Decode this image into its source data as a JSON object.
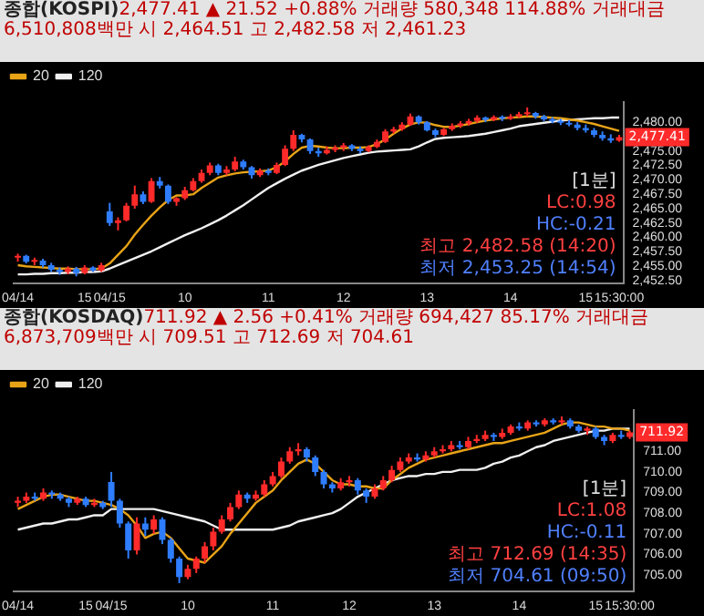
{
  "chart_data": [
    {
      "type": "candlestick",
      "title": "종합(KOSPI)",
      "subtitle": "2,477.41 ▲ 21.52 +0.88% 거래량 580,348 114.88% 거래대금 6,510,808백만 시 2,464.51 고 2,482.58 저 2,461.23",
      "categories": [
        "04/14",
        null,
        null,
        null,
        null,
        null,
        null,
        null,
        "15",
        null,
        null,
        "04/15",
        null,
        null,
        null,
        null,
        null,
        null,
        null,
        null,
        "10",
        null,
        null,
        null,
        null,
        null,
        null,
        null,
        null,
        null,
        "11",
        null,
        null,
        null,
        null,
        null,
        null,
        null,
        null,
        "12",
        null,
        null,
        null,
        null,
        null,
        null,
        null,
        null,
        null,
        "13",
        null,
        null,
        null,
        null,
        null,
        null,
        null,
        null,
        null,
        "14",
        null,
        null,
        null,
        null,
        null,
        null,
        null,
        null,
        "15",
        null,
        null,
        null,
        "15:30:00"
      ],
      "ohlc": [
        [
          2456.5,
          2457.2,
          2455.8,
          2456.8
        ],
        [
          2456.8,
          2457.0,
          2455.5,
          2455.8
        ],
        [
          2455.8,
          2456.5,
          2455.2,
          2456.0
        ],
        [
          2456.0,
          2456.3,
          2454.8,
          2455.2
        ],
        [
          2455.2,
          2455.6,
          2454.0,
          2454.4
        ],
        [
          2454.4,
          2454.8,
          2453.5,
          2454.0
        ],
        [
          2454.0,
          2455.0,
          2453.6,
          2454.6
        ],
        [
          2454.6,
          2454.9,
          2453.25,
          2453.8
        ],
        [
          2453.8,
          2455.2,
          2453.6,
          2454.8
        ],
        [
          2454.8,
          2455.0,
          2454.0,
          2454.3
        ],
        [
          2454.3,
          2455.6,
          2454.0,
          2455.2
        ],
        [
          2464.51,
          2466.0,
          2462.0,
          2462.5
        ],
        [
          2462.5,
          2463.5,
          2461.23,
          2463.0
        ],
        [
          2463.0,
          2466.0,
          2462.8,
          2465.5
        ],
        [
          2465.5,
          2469.0,
          2465.0,
          2467.5
        ],
        [
          2467.5,
          2468.0,
          2465.8,
          2466.2
        ],
        [
          2466.2,
          2470.3,
          2466.0,
          2469.8
        ],
        [
          2469.8,
          2470.5,
          2468.5,
          2469.0
        ],
        [
          2469.0,
          2469.2,
          2465.8,
          2466.2
        ],
        [
          2466.2,
          2467.0,
          2465.5,
          2466.8
        ],
        [
          2466.8,
          2468.8,
          2466.5,
          2468.2
        ],
        [
          2468.2,
          2470.3,
          2468.0,
          2469.8
        ],
        [
          2469.8,
          2471.8,
          2469.5,
          2471.2
        ],
        [
          2471.2,
          2473.0,
          2470.8,
          2472.5
        ],
        [
          2472.5,
          2472.8,
          2470.8,
          2471.2
        ],
        [
          2471.2,
          2472.4,
          2470.8,
          2471.8
        ],
        [
          2471.8,
          2474.0,
          2471.5,
          2473.2
        ],
        [
          2473.2,
          2473.5,
          2471.8,
          2472.2
        ],
        [
          2472.2,
          2472.4,
          2470.2,
          2470.8
        ],
        [
          2470.8,
          2472.0,
          2470.5,
          2471.6
        ],
        [
          2471.6,
          2472.0,
          2470.8,
          2471.2
        ],
        [
          2471.2,
          2473.0,
          2471.0,
          2472.6
        ],
        [
          2472.6,
          2476.0,
          2472.4,
          2475.4
        ],
        [
          2475.4,
          2478.6,
          2475.0,
          2477.8
        ],
        [
          2477.8,
          2478.0,
          2476.5,
          2477.0
        ],
        [
          2477.0,
          2477.2,
          2474.5,
          2475.0
        ],
        [
          2475.0,
          2475.6,
          2474.0,
          2474.6
        ],
        [
          2474.6,
          2475.8,
          2474.4,
          2475.2
        ],
        [
          2475.2,
          2476.0,
          2474.8,
          2475.6
        ],
        [
          2475.6,
          2476.4,
          2475.0,
          2476.0
        ],
        [
          2476.0,
          2476.2,
          2475.0,
          2475.4
        ],
        [
          2475.4,
          2475.8,
          2474.6,
          2475.0
        ],
        [
          2475.0,
          2476.0,
          2474.8,
          2475.7
        ],
        [
          2475.7,
          2477.0,
          2475.5,
          2476.6
        ],
        [
          2476.6,
          2478.8,
          2476.4,
          2478.4
        ],
        [
          2478.4,
          2479.2,
          2478.0,
          2478.8
        ],
        [
          2478.8,
          2480.0,
          2478.5,
          2479.6
        ],
        [
          2479.6,
          2481.5,
          2479.4,
          2481.0
        ],
        [
          2481.0,
          2481.2,
          2479.6,
          2480.0
        ],
        [
          2480.0,
          2480.2,
          2478.4,
          2478.6
        ],
        [
          2478.6,
          2478.9,
          2477.4,
          2477.8
        ],
        [
          2477.8,
          2479.0,
          2477.6,
          2478.8
        ],
        [
          2478.8,
          2479.8,
          2478.5,
          2479.4
        ],
        [
          2479.4,
          2480.2,
          2479.0,
          2479.8
        ],
        [
          2479.8,
          2480.6,
          2479.4,
          2480.2
        ],
        [
          2480.2,
          2481.2,
          2479.9,
          2480.8
        ],
        [
          2480.8,
          2481.0,
          2480.0,
          2480.4
        ],
        [
          2480.4,
          2481.2,
          2480.2,
          2480.9
        ],
        [
          2480.9,
          2481.2,
          2480.2,
          2480.6
        ],
        [
          2480.6,
          2481.4,
          2480.4,
          2481.0
        ],
        [
          2481.0,
          2481.8,
          2480.8,
          2481.4
        ],
        [
          2481.4,
          2482.58,
          2481.0,
          2481.6
        ],
        [
          2481.6,
          2481.8,
          2480.6,
          2481.0
        ],
        [
          2481.0,
          2481.3,
          2480.2,
          2480.5
        ],
        [
          2480.5,
          2480.9,
          2479.8,
          2480.2
        ],
        [
          2480.2,
          2480.6,
          2479.5,
          2479.9
        ],
        [
          2479.9,
          2480.4,
          2479.3,
          2479.6
        ],
        [
          2479.6,
          2480.0,
          2478.6,
          2479.0
        ],
        [
          2479.0,
          2479.6,
          2478.2,
          2478.6
        ],
        [
          2478.6,
          2479.0,
          2477.4,
          2477.8
        ],
        [
          2477.8,
          2478.4,
          2476.8,
          2477.2
        ],
        [
          2477.2,
          2477.9,
          2476.4,
          2476.8
        ],
        [
          2476.8,
          2477.8,
          2476.6,
          2477.41
        ]
      ],
      "series": [
        {
          "name": "20",
          "type": "line",
          "color": "#e8a317",
          "values": [
            2455.2,
            2455.0,
            2454.9,
            2454.8,
            2454.7,
            2454.6,
            2454.6,
            2454.5,
            2454.5,
            2454.5,
            2454.6,
            2455.5,
            2457.0,
            2458.5,
            2460.5,
            2462.2,
            2463.8,
            2465.2,
            2466.5,
            2467.3,
            2467.3,
            2467.5,
            2468.6,
            2469.5,
            2470.4,
            2470.8,
            2471.1,
            2471.3,
            2471.4,
            2471.5,
            2471.6,
            2472.2,
            2473.2,
            2474.5,
            2475.6,
            2475.9,
            2475.8,
            2475.6,
            2475.5,
            2475.5,
            2475.6,
            2475.6,
            2475.7,
            2476.2,
            2477.0,
            2478.0,
            2478.9,
            2479.6,
            2480.0,
            2479.9,
            2479.5,
            2479.2,
            2479.2,
            2479.4,
            2479.7,
            2480.0,
            2480.3,
            2480.5,
            2480.7,
            2480.8,
            2480.9,
            2481.0,
            2481.0,
            2480.9,
            2480.8,
            2480.7,
            2480.5,
            2480.3,
            2480.0,
            2479.7,
            2479.3,
            2478.9,
            2478.5
          ]
        },
        {
          "name": "120",
          "type": "line",
          "color": "#f0f0f0",
          "values": [
            2453.6,
            2453.6,
            2453.7,
            2453.7,
            2453.8,
            2453.8,
            2453.9,
            2453.9,
            2454.0,
            2454.0,
            2454.1,
            2454.6,
            2455.2,
            2455.8,
            2456.4,
            2457.0,
            2457.6,
            2458.3,
            2459.0,
            2459.7,
            2460.4,
            2461.0,
            2461.6,
            2462.3,
            2463.0,
            2463.8,
            2464.7,
            2465.6,
            2466.6,
            2467.6,
            2468.6,
            2469.4,
            2470.2,
            2470.9,
            2471.6,
            2472.1,
            2472.6,
            2473.0,
            2473.4,
            2473.8,
            2474.1,
            2474.4,
            2474.7,
            2474.9,
            2475.0,
            2475.1,
            2475.2,
            2475.3,
            2475.8,
            2476.5,
            2477.1,
            2477.3,
            2477.4,
            2477.5,
            2477.6,
            2477.8,
            2478.0,
            2478.3,
            2478.6,
            2478.9,
            2479.3,
            2479.5,
            2479.7,
            2479.9,
            2480.1,
            2480.3,
            2480.4,
            2480.5,
            2480.6,
            2480.7,
            2480.7,
            2480.8,
            2480.8
          ]
        }
      ],
      "ylim": [
        2452,
        2483.5
      ],
      "yticks": [
        {
          "value": 2452.5,
          "label": "2,452.50"
        },
        {
          "value": 2455,
          "label": "2,455.00"
        },
        {
          "value": 2457.5,
          "label": "2,457.50"
        },
        {
          "value": 2460,
          "label": "2,460.00"
        },
        {
          "value": 2462.5,
          "label": "2,462.50"
        },
        {
          "value": 2465,
          "label": "2,465.00"
        },
        {
          "value": 2467.5,
          "label": "2,467.50"
        },
        {
          "value": 2470,
          "label": "2,470.00"
        },
        {
          "value": 2472.5,
          "label": "2,472.50"
        },
        {
          "value": 2475,
          "label": "2,475.00"
        },
        {
          "value": 2480,
          "label": "2,480.00"
        }
      ],
      "annotations": [
        "[1분]",
        "LC:0.98",
        "HC:-0.21",
        "최고 2,482.58 (14:20)",
        "최저 2,453.25 (14:54)",
        {
          "text": "2,477.41",
          "x": "15:30:00",
          "y": 2477.41
        }
      ],
      "legend": "top left"
    },
    {
      "type": "candlestick",
      "title": "종합(KOSDAQ)",
      "subtitle": "711.92 ▲ 2.56 +0.41% 거래량 694,427 85.17% 거래대금 6,873,709백만 시 709.51 고 712.69 저 704.61",
      "categories": [
        "04/14",
        null,
        null,
        null,
        null,
        null,
        null,
        null,
        "15",
        null,
        null,
        "04/15",
        null,
        null,
        null,
        null,
        null,
        null,
        null,
        null,
        "10",
        null,
        null,
        null,
        null,
        null,
        null,
        null,
        null,
        null,
        "11",
        null,
        null,
        null,
        null,
        null,
        null,
        null,
        null,
        "12",
        null,
        null,
        null,
        null,
        null,
        null,
        null,
        null,
        null,
        "13",
        null,
        null,
        null,
        null,
        null,
        null,
        null,
        null,
        null,
        "14",
        null,
        null,
        null,
        null,
        null,
        null,
        null,
        null,
        "15",
        null,
        null,
        null,
        "15:30:00"
      ],
      "ohlc": [
        [
          708.5,
          708.8,
          708.3,
          708.6
        ],
        [
          708.6,
          709.0,
          708.5,
          708.8
        ],
        [
          708.8,
          709.0,
          708.6,
          708.7
        ],
        [
          708.7,
          709.2,
          708.6,
          709.0
        ],
        [
          709.0,
          709.1,
          708.7,
          708.9
        ],
        [
          708.9,
          709.0,
          708.6,
          708.7
        ],
        [
          708.7,
          708.8,
          708.3,
          708.5
        ],
        [
          708.5,
          708.8,
          708.4,
          708.7
        ],
        [
          708.7,
          708.8,
          708.3,
          708.4
        ],
        [
          708.4,
          708.7,
          708.3,
          708.5
        ],
        [
          708.5,
          708.6,
          708.2,
          708.3
        ],
        [
          709.51,
          710.0,
          708.3,
          708.6
        ],
        [
          708.6,
          708.7,
          707.3,
          707.5
        ],
        [
          707.5,
          707.6,
          705.8,
          706.2
        ],
        [
          706.2,
          707.8,
          706.0,
          707.5
        ],
        [
          707.5,
          707.8,
          706.9,
          707.2
        ],
        [
          707.2,
          707.9,
          707.0,
          707.7
        ],
        [
          707.7,
          707.8,
          706.5,
          706.7
        ],
        [
          706.7,
          706.8,
          705.6,
          705.8
        ],
        [
          705.8,
          705.9,
          704.61,
          704.9
        ],
        [
          704.9,
          705.5,
          704.8,
          705.3
        ],
        [
          705.3,
          705.9,
          705.1,
          705.8
        ],
        [
          705.8,
          706.6,
          705.6,
          706.4
        ],
        [
          706.4,
          707.3,
          706.2,
          707.1
        ],
        [
          707.1,
          707.9,
          707.0,
          707.7
        ],
        [
          707.7,
          708.5,
          707.6,
          708.3
        ],
        [
          708.3,
          709.1,
          708.2,
          708.9
        ],
        [
          708.9,
          709.0,
          708.5,
          708.7
        ],
        [
          708.7,
          709.1,
          708.6,
          708.9
        ],
        [
          708.9,
          709.6,
          708.8,
          709.4
        ],
        [
          709.4,
          710.0,
          709.3,
          709.8
        ],
        [
          709.8,
          710.7,
          709.7,
          710.5
        ],
        [
          710.5,
          711.2,
          710.4,
          711.0
        ],
        [
          711.0,
          711.4,
          710.8,
          711.1
        ],
        [
          711.1,
          711.2,
          710.5,
          710.7
        ],
        [
          710.7,
          710.8,
          709.8,
          710.0
        ],
        [
          710.0,
          710.1,
          709.2,
          709.4
        ],
        [
          709.4,
          709.5,
          709.0,
          709.2
        ],
        [
          709.2,
          709.7,
          709.1,
          709.5
        ],
        [
          709.5,
          709.8,
          709.3,
          709.6
        ],
        [
          709.6,
          709.7,
          708.9,
          709.1
        ],
        [
          709.1,
          709.2,
          708.5,
          708.8
        ],
        [
          708.8,
          709.4,
          708.7,
          709.2
        ],
        [
          709.2,
          709.8,
          709.1,
          709.6
        ],
        [
          709.6,
          710.3,
          709.5,
          710.1
        ],
        [
          710.1,
          710.7,
          710.0,
          710.5
        ],
        [
          710.5,
          710.9,
          710.4,
          710.7
        ],
        [
          710.7,
          710.9,
          710.5,
          710.6
        ],
        [
          710.6,
          711.0,
          710.5,
          710.8
        ],
        [
          710.8,
          711.2,
          710.7,
          711.0
        ],
        [
          711.0,
          711.3,
          710.9,
          711.1
        ],
        [
          711.1,
          711.5,
          711.0,
          711.3
        ],
        [
          711.3,
          711.5,
          711.1,
          711.2
        ],
        [
          711.2,
          711.7,
          711.1,
          711.5
        ],
        [
          711.5,
          711.8,
          711.4,
          711.6
        ],
        [
          711.6,
          712.0,
          711.5,
          711.8
        ],
        [
          711.8,
          711.9,
          711.5,
          711.7
        ],
        [
          711.7,
          712.1,
          711.6,
          711.9
        ],
        [
          711.9,
          712.3,
          711.8,
          712.2
        ],
        [
          712.2,
          712.4,
          712.0,
          712.1
        ],
        [
          712.1,
          712.5,
          712.0,
          712.4
        ],
        [
          712.4,
          712.5,
          712.2,
          712.3
        ],
        [
          712.3,
          712.6,
          712.2,
          712.5
        ],
        [
          712.5,
          712.6,
          712.3,
          712.4
        ],
        [
          712.4,
          712.69,
          712.3,
          712.5
        ],
        [
          712.5,
          712.6,
          712.1,
          712.2
        ],
        [
          712.2,
          712.3,
          711.9,
          712.0
        ],
        [
          712.0,
          712.2,
          711.8,
          712.1
        ],
        [
          712.1,
          712.2,
          711.6,
          711.7
        ],
        [
          711.7,
          711.8,
          711.3,
          711.5
        ],
        [
          711.5,
          711.9,
          711.4,
          711.8
        ],
        [
          711.8,
          712.0,
          711.6,
          711.7
        ],
        [
          711.7,
          712.0,
          711.6,
          711.92
        ]
      ],
      "series": [
        {
          "name": "20",
          "type": "line",
          "color": "#e8a317",
          "values": [
            708.2,
            708.4,
            708.6,
            708.8,
            708.9,
            708.9,
            708.8,
            708.7,
            708.6,
            708.6,
            708.5,
            708.4,
            708.2,
            707.9,
            707.4,
            706.8,
            707.0,
            707.1,
            706.8,
            706.3,
            705.8,
            705.7,
            705.6,
            706.0,
            706.4,
            707.0,
            707.5,
            708.0,
            708.5,
            708.8,
            709.1,
            709.6,
            710.0,
            710.4,
            710.6,
            710.4,
            710.0,
            709.6,
            709.4,
            709.4,
            709.3,
            709.3,
            709.2,
            709.2,
            709.6,
            709.9,
            710.2,
            710.4,
            710.6,
            710.7,
            710.8,
            710.9,
            711.0,
            711.1,
            711.2,
            711.3,
            711.4,
            711.4,
            711.5,
            711.6,
            711.7,
            711.8,
            711.9,
            712.1,
            712.3,
            712.4,
            712.4,
            712.3,
            712.2,
            712.2,
            712.1,
            712.1,
            712.0
          ]
        },
        {
          "name": "120",
          "type": "line",
          "color": "#f0f0f0",
          "values": [
            707.2,
            707.3,
            707.4,
            707.5,
            707.5,
            707.6,
            707.7,
            707.7,
            707.8,
            707.9,
            707.9,
            708.2,
            708.2,
            708.2,
            708.2,
            708.2,
            708.2,
            708.1,
            708.0,
            707.9,
            707.8,
            707.7,
            707.6,
            707.4,
            707.2,
            707.2,
            707.2,
            707.2,
            707.2,
            707.2,
            707.2,
            707.3,
            707.4,
            707.6,
            707.7,
            707.8,
            707.9,
            708.0,
            708.2,
            708.5,
            708.8,
            709.0,
            709.2,
            709.4,
            709.6,
            709.7,
            709.8,
            709.8,
            709.9,
            709.9,
            710.0,
            710.0,
            710.1,
            710.1,
            710.1,
            710.2,
            710.4,
            710.5,
            710.7,
            710.8,
            711.0,
            711.2,
            711.3,
            711.5,
            711.6,
            711.7,
            711.8,
            711.9,
            712.0,
            712.0,
            712.1,
            712.1,
            712.1
          ]
        }
      ],
      "ylim": [
        704.2,
        713.0
      ],
      "yticks": [
        {
          "value": 705,
          "label": "705.00"
        },
        {
          "value": 706,
          "label": "706.00"
        },
        {
          "value": 707,
          "label": "707.00"
        },
        {
          "value": 708,
          "label": "708.00"
        },
        {
          "value": 709,
          "label": "709.00"
        },
        {
          "value": 710,
          "label": "710.00"
        },
        {
          "value": 711,
          "label": "711.00"
        }
      ],
      "annotations": [
        "[1분]",
        "LC:1.08",
        "HC:-0.11",
        "최고 712.69 (14:35)",
        "최저 704.61 (09:50)",
        {
          "text": "711.92",
          "x": "15:30:00",
          "y": 711.92
        }
      ],
      "legend": "top left"
    }
  ]
}
